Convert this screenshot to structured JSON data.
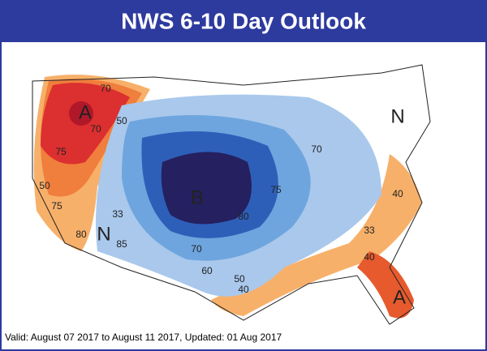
{
  "header": {
    "title": "NWS 6-10 Day Outlook"
  },
  "map": {
    "labels": [
      {
        "text": "A"
      },
      {
        "text": "70"
      },
      {
        "text": "50"
      },
      {
        "text": "70"
      },
      {
        "text": "75"
      },
      {
        "text": "50"
      },
      {
        "text": "75"
      },
      {
        "text": "80"
      },
      {
        "text": "N"
      },
      {
        "text": "33"
      },
      {
        "text": "85"
      },
      {
        "text": "B"
      },
      {
        "text": "70"
      },
      {
        "text": "60"
      },
      {
        "text": "50"
      },
      {
        "text": "40"
      },
      {
        "text": "80"
      },
      {
        "text": "75"
      },
      {
        "text": "70"
      },
      {
        "text": "N"
      },
      {
        "text": "40"
      },
      {
        "text": "33"
      },
      {
        "text": "40"
      },
      {
        "text": "A"
      }
    ]
  },
  "footer": {
    "text": "Valid: August 07 2017 to August 11 2017, Updated: 01 Aug 2017"
  }
}
